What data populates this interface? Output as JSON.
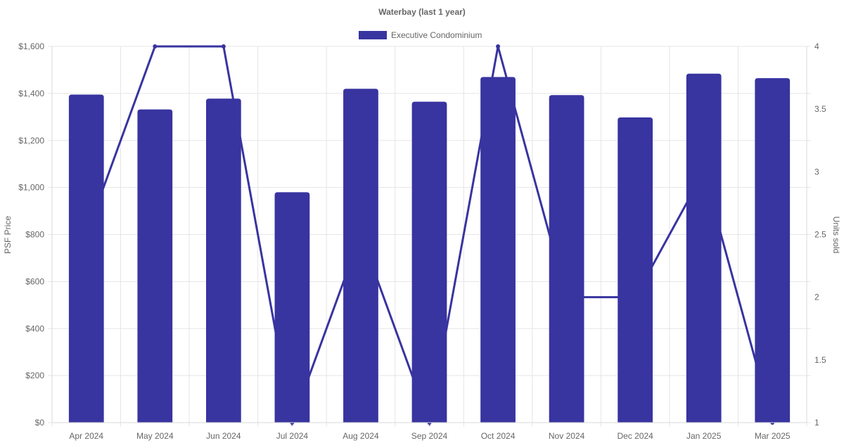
{
  "chart_data": {
    "type": "bar",
    "title": "Waterbay (last 1 year)",
    "categories": [
      "Apr 2024",
      "May 2024",
      "Jun 2024",
      "Jul 2024",
      "Aug 2024",
      "Sep 2024",
      "Oct 2024",
      "Nov 2024",
      "Dec 2024",
      "Jan 2025",
      "Mar 2025"
    ],
    "series": [
      {
        "name": "Executive Condominium",
        "type": "bar",
        "axis": "left",
        "values": [
          1395,
          1332,
          1378,
          980,
          1420,
          1365,
          1470,
          1393,
          1298,
          1484,
          1465
        ]
      },
      {
        "type": "line",
        "axis": "right",
        "values": [
          2.5,
          4,
          4,
          1,
          2.5,
          1,
          4,
          2,
          2,
          3,
          1
        ]
      }
    ],
    "left_axis": {
      "label": "PSF Price",
      "range": [
        0,
        1600
      ],
      "ticks": [
        0,
        200,
        400,
        600,
        800,
        1000,
        1200,
        1400,
        1600
      ],
      "tick_labels": [
        "$0",
        "$200",
        "$400",
        "$600",
        "$800",
        "$1,000",
        "$1,200",
        "$1,400",
        "$1,600"
      ]
    },
    "right_axis": {
      "label": "Units sold",
      "range": [
        1,
        4
      ],
      "ticks": [
        1,
        1.5,
        2,
        2.5,
        3,
        3.5,
        4
      ],
      "tick_labels": [
        "1",
        "1.5",
        "2",
        "2.5",
        "3",
        "3.5",
        "4"
      ]
    },
    "legend": {
      "position": "top-center"
    },
    "grid": true,
    "colors": {
      "bar": "#3834a0",
      "line": "#3834a0",
      "grid": "#e5e5e5",
      "text": "#666666"
    }
  }
}
